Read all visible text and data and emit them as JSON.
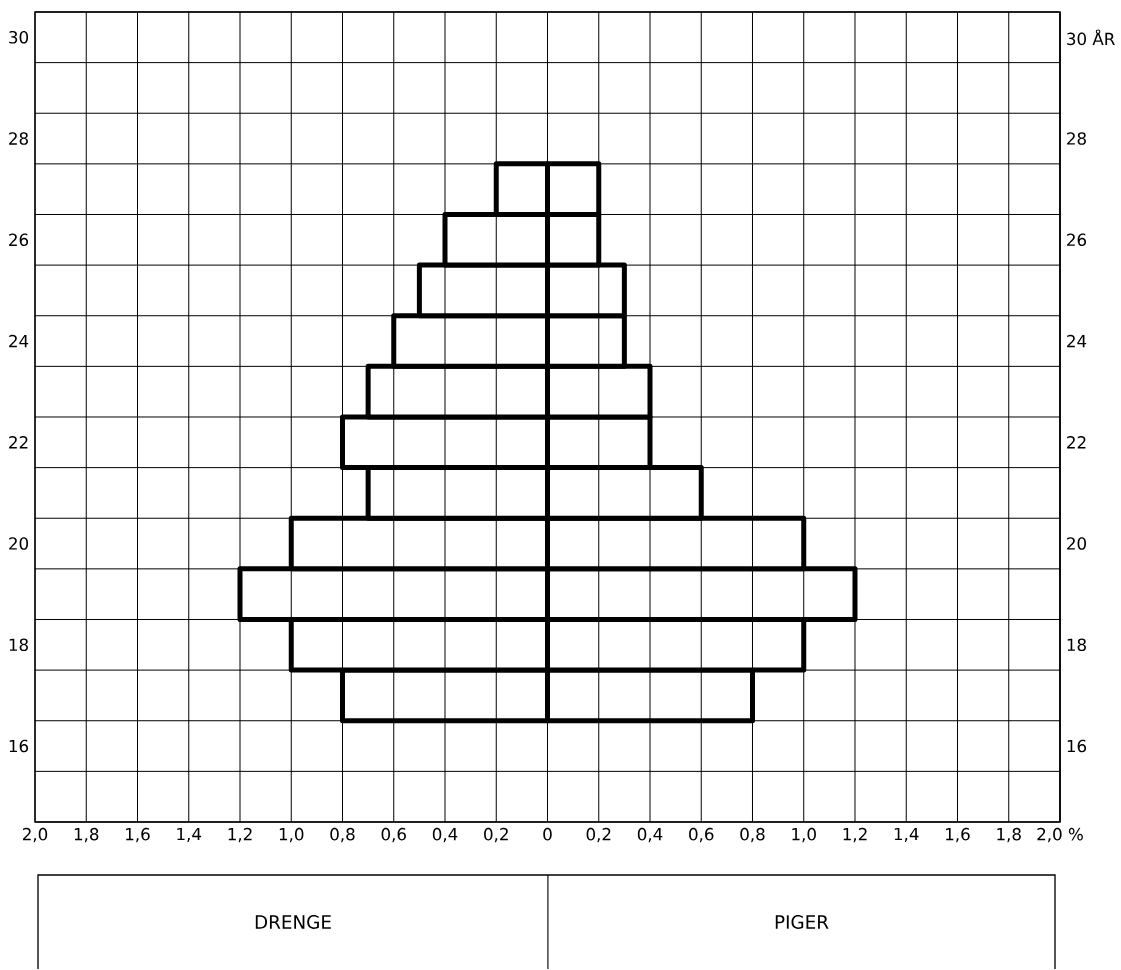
{
  "chart_data": {
    "type": "bar",
    "orientation": "horizontal",
    "x": [
      17,
      18,
      19,
      20,
      21,
      22,
      23,
      24,
      25,
      26,
      27
    ],
    "series": [
      {
        "color": "#000000",
        "values": [
          -0.8,
          -1.0,
          -1.2,
          -1.0,
          -0.7,
          -0.8,
          -0.7,
          -0.6,
          -0.5,
          -0.4,
          -0.2
        ]
      },
      {
        "color": "#000000",
        "values": [
          0.8,
          1.0,
          1.2,
          1.0,
          0.6,
          0.4,
          0.4,
          0.3,
          0.3,
          0.2,
          0.2
        ]
      }
    ],
    "xlim": [
      -2,
      2
    ],
    "xticks": [
      {
        "value": -2,
        "label": "2,0"
      },
      {
        "value": -1.8,
        "label": "1,8"
      },
      {
        "value": -1.6,
        "label": "1,6"
      },
      {
        "value": -1.4,
        "label": "1,4"
      },
      {
        "value": -1.2,
        "label": "1,2"
      },
      {
        "value": -1.0,
        "label": "1,0"
      },
      {
        "value": -0.8,
        "label": "0,8"
      },
      {
        "value": -0.6,
        "label": "0,6"
      },
      {
        "value": -0.4,
        "label": "0,4"
      },
      {
        "value": -0.2,
        "label": "0,2"
      },
      0,
      {
        "value": 0.2,
        "label": "0,2"
      },
      {
        "value": 0.4,
        "label": "0,4"
      },
      {
        "value": 0.6,
        "label": "0,6"
      },
      {
        "value": 0.8,
        "label": "0,8"
      },
      {
        "value": 1.0,
        "label": "1,0"
      },
      {
        "value": 1.2,
        "label": "1,2"
      },
      {
        "value": 1.4,
        "label": "1,4"
      },
      {
        "value": 1.6,
        "label": "1,6"
      },
      {
        "value": 1.8,
        "label": "1,8"
      },
      {
        "value": 2,
        "label": "2,0 %"
      }
    ],
    "ylim": [
      14.5,
      30.5
    ],
    "yticks": [
      16,
      18,
      20,
      22,
      24,
      26,
      28,
      30
    ],
    "y2lim": [
      14.5,
      30.5
    ],
    "y2ticks": [
      16,
      18,
      20,
      22,
      24,
      26,
      28,
      {
        "value": 30,
        "label": "30 ÅR"
      }
    ],
    "grid": true,
    "stacked": true,
    "annotations": [
      "DRENGE",
      "PIGER"
    ]
  }
}
